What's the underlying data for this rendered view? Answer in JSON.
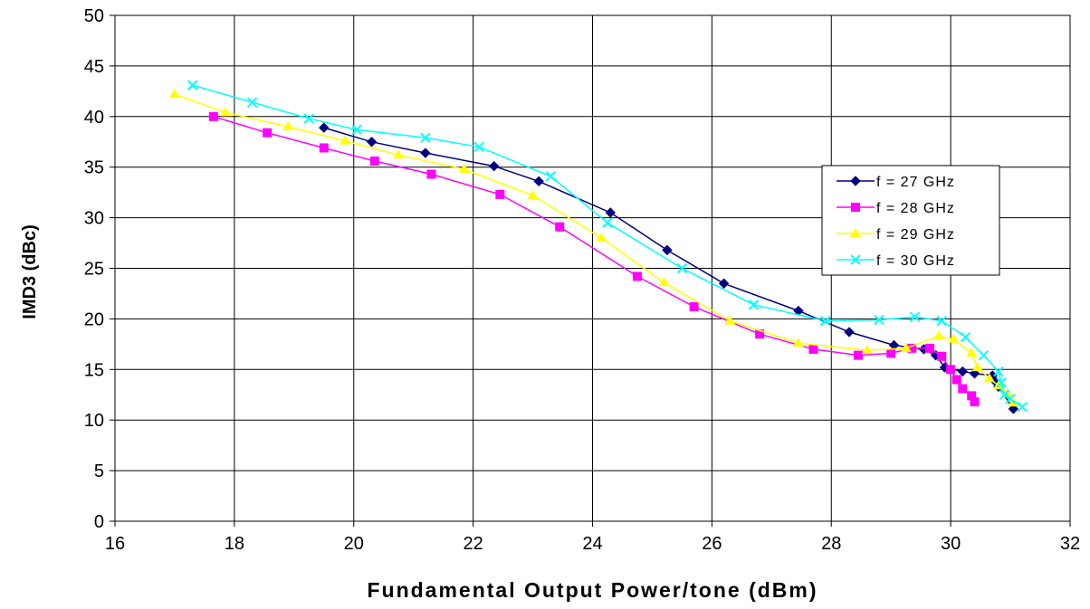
{
  "chart_data": {
    "type": "line",
    "title": "",
    "xlabel": "Fundamental Output Power/tone (dBm)",
    "ylabel": "IMD3 (dBc)",
    "xlim": [
      16,
      32
    ],
    "ylim": [
      0,
      50
    ],
    "xticks": [
      16,
      18,
      20,
      22,
      24,
      26,
      28,
      30,
      32
    ],
    "yticks": [
      0,
      5,
      10,
      15,
      20,
      25,
      30,
      35,
      40,
      45,
      50
    ],
    "grid": true,
    "legend_position": "right",
    "series": [
      {
        "name": "f = 27 GHz",
        "color": "#000080",
        "marker": "diamond",
        "x": [
          19.5,
          20.3,
          21.2,
          22.35,
          23.1,
          24.3,
          25.25,
          26.2,
          27.45,
          28.3,
          29.05,
          29.55,
          29.75,
          29.9,
          30.2,
          30.4,
          30.7,
          30.75,
          30.8,
          31.05
        ],
        "y": [
          38.9,
          37.5,
          36.4,
          35.1,
          33.6,
          30.5,
          26.8,
          23.5,
          20.8,
          18.7,
          17.4,
          17.0,
          16.4,
          15.2,
          14.8,
          14.6,
          14.4,
          13.8,
          13.3,
          11.1
        ]
      },
      {
        "name": "f = 28 GHz",
        "color": "#FF00FF",
        "marker": "square",
        "x": [
          17.65,
          18.55,
          19.5,
          20.35,
          21.3,
          22.45,
          23.45,
          24.75,
          25.7,
          26.8,
          27.7,
          28.45,
          29.0,
          29.35,
          29.65,
          29.85,
          30.0,
          30.1,
          30.2,
          30.35,
          30.4
        ],
        "y": [
          40.0,
          38.4,
          36.9,
          35.6,
          34.3,
          32.3,
          29.1,
          24.2,
          21.2,
          18.5,
          17.0,
          16.4,
          16.6,
          17.1,
          17.1,
          16.3,
          15.0,
          14.0,
          13.1,
          12.4,
          11.8
        ]
      },
      {
        "name": "f = 29 GHz",
        "color": "#FFFF00",
        "marker": "triangle",
        "x": [
          17.0,
          17.85,
          18.9,
          19.85,
          20.75,
          21.85,
          23.0,
          24.15,
          25.2,
          26.3,
          27.45,
          28.6,
          29.25,
          29.8,
          30.05,
          30.35,
          30.45,
          30.65,
          30.8,
          30.95,
          31.05
        ],
        "y": [
          42.2,
          40.4,
          39.0,
          37.6,
          36.2,
          34.8,
          32.2,
          28.0,
          23.6,
          19.8,
          17.6,
          16.9,
          17.1,
          18.3,
          18.0,
          16.6,
          15.2,
          14.1,
          13.4,
          12.6,
          11.7
        ]
      },
      {
        "name": "f = 30 GHz",
        "color": "#00FFFF",
        "marker": "x",
        "x": [
          17.3,
          18.3,
          19.25,
          20.05,
          21.2,
          22.1,
          23.3,
          24.25,
          25.5,
          26.7,
          27.9,
          28.8,
          29.4,
          29.85,
          30.25,
          30.55,
          30.8,
          30.85,
          30.9,
          31.0,
          31.2
        ],
        "y": [
          43.1,
          41.4,
          39.8,
          38.7,
          37.9,
          37.0,
          34.1,
          29.5,
          25.0,
          21.4,
          19.8,
          19.9,
          20.2,
          19.8,
          18.2,
          16.4,
          14.8,
          13.7,
          12.5,
          12.1,
          11.3
        ]
      }
    ]
  }
}
